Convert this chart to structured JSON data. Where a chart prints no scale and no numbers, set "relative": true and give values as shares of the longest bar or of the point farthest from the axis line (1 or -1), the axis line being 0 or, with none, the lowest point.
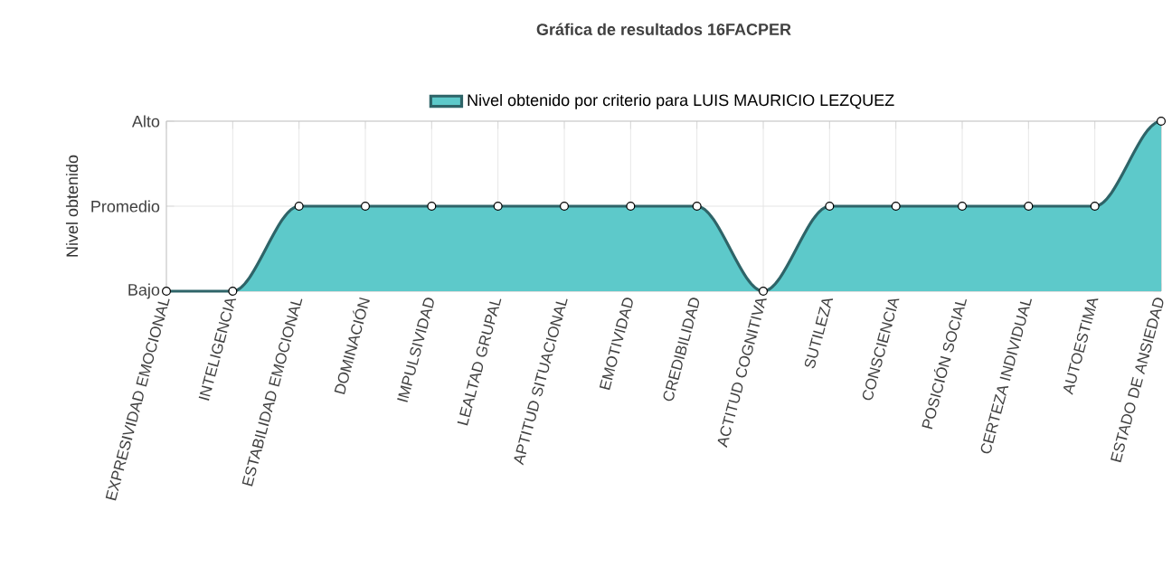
{
  "chart_data": {
    "type": "area",
    "title": "Gráfica de resultados 16FACPER",
    "ylabel": "Nivel obtenido",
    "categories": [
      "EXPRESIVIDAD EMOCIONAL",
      "INTELIGENCIA",
      "ESTABILIDAD EMOCIONAL",
      "DOMINACIÓN",
      "IMPULSIVIDAD",
      "LEALTAD GRUPAL",
      "APTITUD SITUACIONAL",
      "EMOTIVIDAD",
      "CREDIBILIDAD",
      "ACTITUD COGNITIVA",
      "SUTILEZA",
      "CONSCIENCIA",
      "POSICIÓN SOCIAL",
      "CERTEZA INDIVIDUAL",
      "AUTOESTIMA",
      "ESTADO DE ANSIEDAD"
    ],
    "series": [
      {
        "name": "Nivel obtenido por criterio para LUIS MAURICIO LEZQUEZ",
        "color": "#2e6468",
        "values": [
          0,
          0,
          0.5,
          0.5,
          0.5,
          0.5,
          0.5,
          0.5,
          0.5,
          0,
          0.5,
          0.5,
          0.5,
          0.5,
          0.5,
          1
        ]
      }
    ],
    "relative": true,
    "annotations": [
      "Bajo",
      "Promedio",
      "Alto"
    ],
    "grid": true,
    "legend": "top",
    "marker": "circle"
  }
}
